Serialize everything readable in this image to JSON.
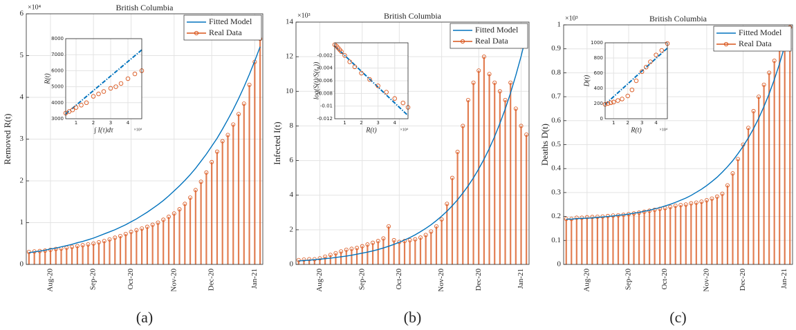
{
  "chart_data": [
    {
      "type": "line",
      "title": "British Columbia",
      "y_label": "Removed R(t)",
      "y_exponent": "×10⁴",
      "caption": "(a)",
      "categories": [
        null,
        null,
        null,
        null,
        "Aug-20",
        null,
        null,
        null,
        null,
        null,
        null,
        null,
        "Sep-20",
        null,
        null,
        null,
        null,
        null,
        null,
        "Oct-20",
        null,
        null,
        null,
        null,
        null,
        null,
        null,
        "Nov-20",
        null,
        null,
        null,
        null,
        null,
        null,
        "Dec-20",
        null,
        null,
        null,
        null,
        null,
        null,
        null,
        "Jan-21",
        null
      ],
      "ylim": [
        0,
        6
      ],
      "yticks": [
        0,
        1,
        2,
        3,
        4,
        5,
        6
      ],
      "grid": true,
      "legend": "upper right",
      "series": [
        {
          "name": "Fitted Model",
          "color": "#0072bd",
          "style": "line",
          "values": [
            0.28,
            0.3,
            0.32,
            0.34,
            0.37,
            0.39,
            0.42,
            0.45,
            0.48,
            0.52,
            0.55,
            0.59,
            0.63,
            0.68,
            0.73,
            0.78,
            0.83,
            0.89,
            0.95,
            1.02,
            1.09,
            1.17,
            1.25,
            1.34,
            1.43,
            1.53,
            1.64,
            1.76,
            1.88,
            2.01,
            2.15,
            2.3,
            2.47,
            2.64,
            2.83,
            3.02,
            3.24,
            3.47,
            3.71,
            3.97,
            4.25,
            4.55,
            4.87,
            5.21
          ]
        },
        {
          "name": "Real Data",
          "color": "#d95319",
          "style": "stem",
          "values": [
            0.3,
            0.31,
            0.32,
            0.33,
            0.35,
            0.37,
            0.38,
            0.4,
            0.42,
            0.44,
            0.46,
            0.48,
            0.5,
            0.53,
            0.56,
            0.6,
            0.64,
            0.68,
            0.73,
            0.78,
            0.82,
            0.86,
            0.9,
            0.95,
            1.0,
            1.07,
            1.14,
            1.22,
            1.32,
            1.45,
            1.6,
            1.78,
            1.98,
            2.2,
            2.45,
            2.7,
            2.95,
            3.1,
            3.35,
            3.6,
            3.85,
            4.3,
            4.85,
            5.4
          ]
        }
      ]
    },
    {
      "type": "line",
      "title": "British Columbia",
      "y_label": "Infected I(t)",
      "y_exponent": "×10³",
      "caption": "(b)",
      "categories": [
        null,
        null,
        null,
        null,
        "Aug-20",
        null,
        null,
        null,
        null,
        null,
        null,
        null,
        "Sep-20",
        null,
        null,
        null,
        null,
        null,
        null,
        "Oct-20",
        null,
        null,
        null,
        null,
        null,
        null,
        null,
        "Nov-20",
        null,
        null,
        null,
        null,
        null,
        null,
        "Dec-20",
        null,
        null,
        null,
        null,
        null,
        null,
        null,
        "Jan-21",
        null
      ],
      "ylim": [
        0,
        14
      ],
      "yticks": [
        0,
        2,
        4,
        6,
        8,
        10,
        12,
        14
      ],
      "grid": true,
      "legend": "upper right",
      "series": [
        {
          "name": "Fitted Model",
          "color": "#0072bd",
          "style": "line",
          "values": [
            0.2,
            0.22,
            0.24,
            0.27,
            0.3,
            0.33,
            0.36,
            0.4,
            0.44,
            0.48,
            0.53,
            0.59,
            0.65,
            0.71,
            0.78,
            0.86,
            0.95,
            1.05,
            1.16,
            1.28,
            1.41,
            1.55,
            1.71,
            1.89,
            2.08,
            2.29,
            2.53,
            2.79,
            3.07,
            3.39,
            3.73,
            4.12,
            4.54,
            5.0,
            5.52,
            6.08,
            6.7,
            7.39,
            8.15,
            8.98,
            9.9,
            10.92,
            12.03,
            13.27
          ]
        },
        {
          "name": "Real Data",
          "color": "#d95319",
          "style": "stem",
          "values": [
            0.25,
            0.28,
            0.3,
            0.3,
            0.35,
            0.45,
            0.55,
            0.65,
            0.75,
            0.85,
            0.9,
            0.95,
            1.05,
            1.15,
            1.25,
            1.35,
            1.5,
            2.2,
            1.4,
            1.3,
            1.35,
            1.4,
            1.45,
            1.55,
            1.7,
            1.9,
            2.2,
            2.6,
            3.5,
            5.0,
            6.5,
            8.0,
            9.5,
            10.5,
            11.2,
            12.0,
            11.0,
            10.5,
            10.0,
            9.5,
            10.5,
            9.0,
            8.0,
            7.5
          ]
        }
      ]
    },
    {
      "type": "line",
      "title": "British Columbia",
      "y_label": "Deaths D(t)",
      "y_exponent": "×10³",
      "caption": "(c)",
      "categories": [
        null,
        null,
        null,
        null,
        "Aug-20",
        null,
        null,
        null,
        null,
        null,
        null,
        null,
        "Sep-20",
        null,
        null,
        null,
        null,
        null,
        null,
        "Oct-20",
        null,
        null,
        null,
        null,
        null,
        null,
        null,
        "Nov-20",
        null,
        null,
        null,
        null,
        null,
        null,
        "Dec-20",
        null,
        null,
        null,
        null,
        null,
        null,
        null,
        "Jan-21",
        null
      ],
      "ylim": [
        0,
        1
      ],
      "yticks": [
        0,
        0.1,
        0.2,
        0.3,
        0.4,
        0.5,
        0.6,
        0.7,
        0.8,
        0.9,
        1
      ],
      "grid": true,
      "legend": "upper right",
      "series": [
        {
          "name": "Fitted Model",
          "color": "#0072bd",
          "style": "line",
          "values": [
            0.189,
            0.189,
            0.191,
            0.192,
            0.193,
            0.194,
            0.196,
            0.198,
            0.2,
            0.202,
            0.205,
            0.207,
            0.21,
            0.214,
            0.217,
            0.222,
            0.226,
            0.232,
            0.237,
            0.244,
            0.251,
            0.259,
            0.268,
            0.277,
            0.288,
            0.301,
            0.314,
            0.329,
            0.346,
            0.364,
            0.385,
            0.408,
            0.433,
            0.462,
            0.493,
            0.528,
            0.567,
            0.61,
            0.659,
            0.712,
            0.772,
            0.838,
            0.912,
            0.993
          ]
        },
        {
          "name": "Real Data",
          "color": "#d95319",
          "style": "stem",
          "values": [
            0.19,
            0.19,
            0.195,
            0.195,
            0.197,
            0.198,
            0.199,
            0.2,
            0.202,
            0.204,
            0.205,
            0.207,
            0.21,
            0.213,
            0.216,
            0.22,
            0.224,
            0.228,
            0.232,
            0.235,
            0.24,
            0.245,
            0.248,
            0.25,
            0.255,
            0.258,
            0.262,
            0.268,
            0.275,
            0.283,
            0.295,
            0.33,
            0.38,
            0.44,
            0.5,
            0.57,
            0.64,
            0.7,
            0.75,
            0.8,
            0.85,
            0.9,
            0.95,
            0.99
          ]
        }
      ]
    },
    {
      "type": "scatter",
      "y_label": "R(t)",
      "x_label": "∫ I(τ)dτ",
      "x_exponent": "×10⁴",
      "xlim": [
        0.4,
        4.8
      ],
      "xticks": [
        1,
        2,
        3,
        4
      ],
      "ylim": [
        3000,
        8000
      ],
      "yticks": [
        3000,
        4000,
        5000,
        6000,
        7000,
        8000
      ],
      "grid": true,
      "series": [
        {
          "color": "#0072bd",
          "style": "dashdot",
          "x": [
            0.4,
            4.8
          ],
          "values": [
            3300,
            7300
          ]
        },
        {
          "color": "#d95319",
          "style": "markers",
          "x": [
            0.4,
            0.6,
            0.8,
            1.0,
            1.3,
            1.6,
            2.0,
            2.3,
            2.6,
            3.0,
            3.3,
            3.6,
            4.0,
            4.4,
            4.8
          ],
          "values": [
            3350,
            3450,
            3550,
            3700,
            3850,
            4000,
            4400,
            4550,
            4700,
            4900,
            5000,
            5200,
            5500,
            5800,
            6000
          ]
        }
      ]
    },
    {
      "type": "scatter",
      "y_label": "log(S(t)/S(t₀))",
      "x_label": "R(t)",
      "x_exponent": "×10⁴",
      "xlim": [
        0.4,
        4.8
      ],
      "xticks": [
        1,
        2,
        3,
        4
      ],
      "ylim": [
        -0.012,
        0
      ],
      "yticks": [
        -0.012,
        -0.01,
        -0.008,
        -0.006,
        -0.004,
        -0.002
      ],
      "grid": true,
      "series": [
        {
          "color": "#0072bd",
          "style": "dashdot",
          "x": [
            0.4,
            4.8
          ],
          "values": [
            -0.0005,
            -0.0115
          ]
        },
        {
          "color": "#d95319",
          "style": "markers",
          "x": [
            0.4,
            0.5,
            0.6,
            0.7,
            0.8,
            1.0,
            1.3,
            1.6,
            2.0,
            2.5,
            3.0,
            3.5,
            4.0,
            4.5,
            4.8
          ],
          "values": [
            -0.0003,
            -0.0005,
            -0.0008,
            -0.0011,
            -0.0014,
            -0.002,
            -0.003,
            -0.0038,
            -0.0048,
            -0.0058,
            -0.0068,
            -0.0078,
            -0.0088,
            -0.0095,
            -0.0102
          ]
        }
      ]
    },
    {
      "type": "scatter",
      "y_label": "D(t)",
      "x_label": "R(t)",
      "x_exponent": "×10⁴",
      "xlim": [
        0.4,
        4.8
      ],
      "xticks": [
        1,
        2,
        3,
        4
      ],
      "ylim": [
        0,
        1000
      ],
      "yticks": [
        0,
        200,
        400,
        600,
        800,
        1000
      ],
      "grid": true,
      "series": [
        {
          "color": "#0072bd",
          "style": "dashdot",
          "x": [
            0.4,
            4.8
          ],
          "values": [
            190,
            930
          ]
        },
        {
          "color": "#d95319",
          "style": "markers",
          "x": [
            0.4,
            0.6,
            0.8,
            1.0,
            1.3,
            1.6,
            2.0,
            2.3,
            2.6,
            3.0,
            3.3,
            3.6,
            4.0,
            4.4,
            4.8
          ],
          "values": [
            190,
            200,
            210,
            220,
            240,
            260,
            300,
            380,
            500,
            620,
            680,
            750,
            840,
            900,
            990
          ]
        }
      ]
    }
  ]
}
